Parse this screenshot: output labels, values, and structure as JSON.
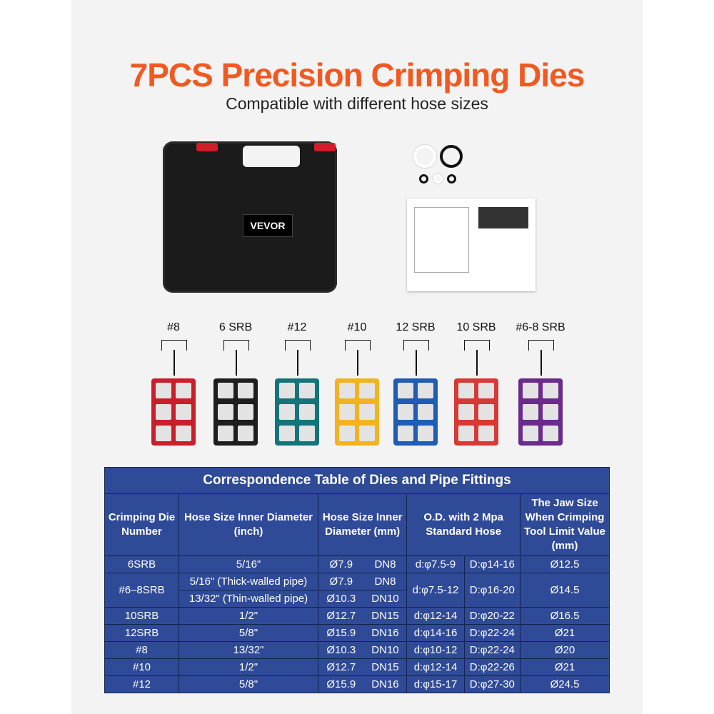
{
  "header": {
    "title": "7PCS Precision Crimping Dies",
    "subtitle": "Compatible with different hose sizes"
  },
  "case": {
    "brand": "VEVOR"
  },
  "dies": [
    {
      "label": "#8",
      "color": "#c81f2b"
    },
    {
      "label": "6 SRB",
      "color": "#1e1e1e"
    },
    {
      "label": "#12",
      "color": "#13757a"
    },
    {
      "label": "#10",
      "color": "#f2b322"
    },
    {
      "label": "12 SRB",
      "color": "#1f5cb3"
    },
    {
      "label": "10 SRB",
      "color": "#d63a35"
    },
    {
      "label": "#6-8 SRB",
      "color": "#6b2b8c"
    }
  ],
  "table": {
    "title": "Correspondence Table of Dies and Pipe Fittings",
    "headers": [
      "Crimping Die Number",
      "Hose Size Inner Diameter (inch)",
      "Hose Size Inner Diameter (mm)",
      "O.D. with 2 Mpa Standard Hose",
      "The Jaw Size When Crimping Tool Limit Value (mm)"
    ],
    "rows": [
      {
        "die": "6SRB",
        "inch": "5/16\"",
        "mm": "Ø7.9",
        "dn": "DN8",
        "d": "d:φ7.5-9",
        "D": "D:φ14-16",
        "jaw": "Ø12.5"
      },
      {
        "die": "#6–8SRB",
        "inch": "5/16\" (Thick-walled pipe)",
        "mm": "Ø7.9",
        "dn": "DN8",
        "d": "d:φ7.5-12",
        "D": "D:φ16-20",
        "jaw": "Ø14.5",
        "inch2": "13/32\" (Thin-walled pipe)",
        "mm2": "Ø10.3",
        "dn2": "DN10"
      },
      {
        "die": "10SRB",
        "inch": "1/2\"",
        "mm": "Ø12.7",
        "dn": "DN15",
        "d": "d:φ12-14",
        "D": "D:φ20-22",
        "jaw": "Ø16.5"
      },
      {
        "die": "12SRB",
        "inch": "5/8\"",
        "mm": "Ø15.9",
        "dn": "DN16",
        "d": "d:φ14-16",
        "D": "D:φ22-24",
        "jaw": "Ø21"
      },
      {
        "die": "#8",
        "inch": "13/32\"",
        "mm": "Ø10.3",
        "dn": "DN10",
        "d": "d:φ10-12",
        "D": "D:φ22-24",
        "jaw": "Ø20"
      },
      {
        "die": "#10",
        "inch": "1/2\"",
        "mm": "Ø12.7",
        "dn": "DN15",
        "d": "d:φ12-14",
        "D": "D:φ22-26",
        "jaw": "Ø21"
      },
      {
        "die": "#12",
        "inch": "5/8\"",
        "mm": "Ø15.9",
        "dn": "DN16",
        "d": "d:φ15-17",
        "D": "D:φ27-30",
        "jaw": "Ø24.5"
      }
    ]
  }
}
